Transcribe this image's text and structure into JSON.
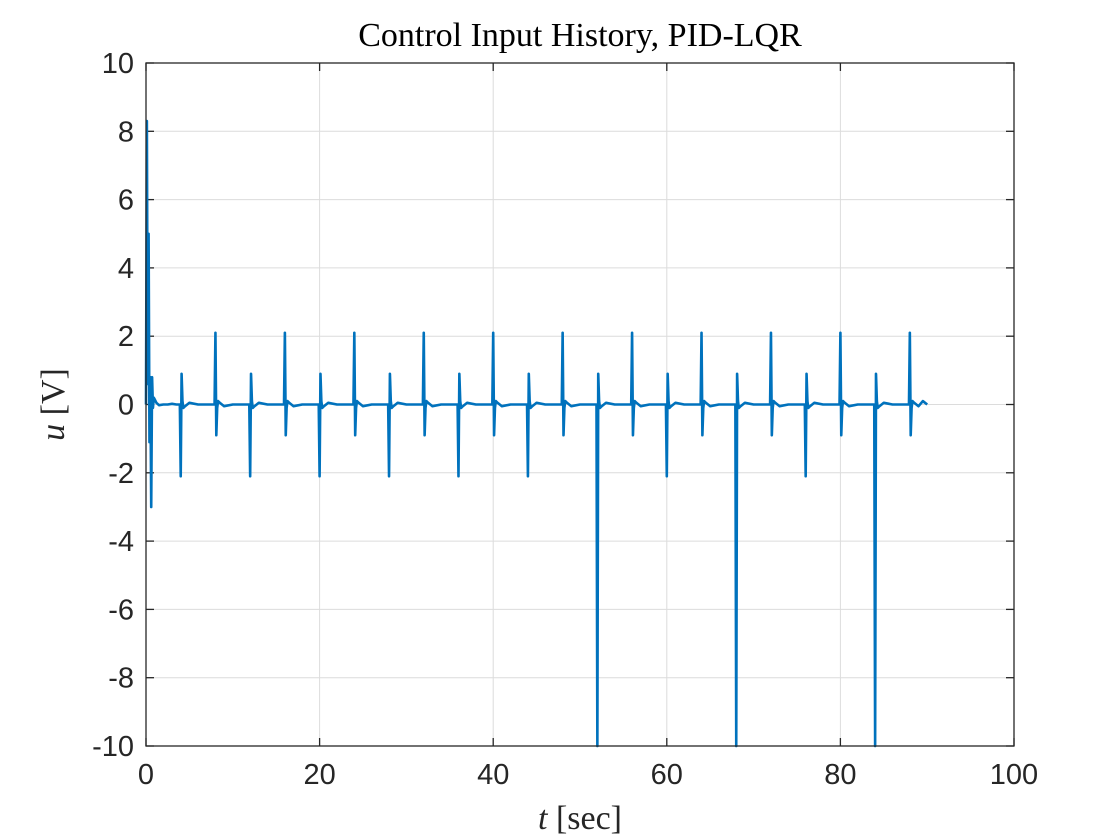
{
  "chart_data": {
    "type": "line",
    "title": "Control Input History, PID-LQR",
    "xlabel": {
      "var": "t",
      "unit": "[sec]"
    },
    "ylabel": {
      "var": "u",
      "unit": "[V]"
    },
    "xlim": [
      0,
      100
    ],
    "ylim": [
      -10,
      10
    ],
    "xticks": [
      0,
      20,
      40,
      60,
      80,
      100
    ],
    "xtick_labels": [
      "0",
      "20",
      "40",
      "60",
      "80",
      "100"
    ],
    "yticks": [
      -10,
      -8,
      -6,
      -4,
      -2,
      0,
      2,
      4,
      6,
      8,
      10
    ],
    "ytick_labels": [
      "-10",
      "-8",
      "-6",
      "-4",
      "-2",
      "0",
      "2",
      "4",
      "6",
      "8",
      "10"
    ],
    "grid": true,
    "line_color": "#0072BD",
    "grid_color": "#dcdcdc",
    "axis_color": "#262626",
    "series": [
      {
        "x": [
          0,
          0.1,
          0.2,
          0.3,
          0.4,
          0.5,
          0.6,
          0.7,
          0.8,
          0.9,
          1.0,
          1.2,
          1.5,
          2.0,
          2.5,
          3.0,
          3.5,
          3.9,
          4.0,
          4.1,
          4.2,
          4.3,
          4.5,
          5.0,
          6.0,
          7.0,
          7.9,
          8.0,
          8.1,
          8.2,
          8.3,
          8.5,
          9.0,
          10.0,
          11.0,
          11.9,
          12.0,
          12.1,
          12.2,
          12.3,
          12.5,
          13.0,
          14.0,
          15.0,
          15.9,
          16.0,
          16.1,
          16.2,
          16.3,
          16.5,
          17.0,
          18.0,
          19.0,
          19.9,
          20.0,
          20.1,
          20.2,
          20.3,
          20.5,
          21.0,
          22.0,
          23.0,
          23.9,
          24.0,
          24.1,
          24.2,
          24.3,
          24.5,
          25.0,
          26.0,
          27.0,
          27.9,
          28.0,
          28.1,
          28.2,
          28.3,
          28.5,
          29.0,
          30.0,
          31.0,
          31.9,
          32.0,
          32.1,
          32.2,
          32.3,
          32.5,
          33.0,
          34.0,
          35.0,
          35.9,
          36.0,
          36.1,
          36.2,
          36.3,
          36.5,
          37.0,
          38.0,
          39.0,
          39.9,
          40.0,
          40.1,
          40.2,
          40.3,
          40.5,
          41.0,
          42.0,
          43.0,
          43.9,
          44.0,
          44.1,
          44.2,
          44.3,
          44.5,
          45.0,
          46.0,
          47.0,
          47.9,
          48.0,
          48.1,
          48.2,
          48.3,
          48.5,
          49.0,
          50.0,
          51.0,
          51.9,
          52.0,
          52.1,
          52.2,
          52.3,
          52.5,
          53.0,
          54.0,
          55.0,
          55.9,
          56.0,
          56.1,
          56.2,
          56.3,
          56.5,
          57.0,
          58.0,
          59.0,
          59.9,
          60.0,
          60.1,
          60.2,
          60.3,
          60.5,
          61.0,
          62.0,
          63.0,
          63.9,
          64.0,
          64.1,
          64.2,
          64.3,
          64.5,
          65.0,
          66.0,
          67.0,
          67.9,
          68.0,
          68.1,
          68.2,
          68.3,
          68.5,
          69.0,
          70.0,
          71.0,
          71.9,
          72.0,
          72.1,
          72.2,
          72.3,
          72.5,
          73.0,
          74.0,
          75.0,
          75.9,
          76.0,
          76.1,
          76.2,
          76.3,
          76.5,
          77.0,
          78.0,
          79.0,
          79.9,
          80.0,
          80.1,
          80.2,
          80.3,
          80.5,
          81.0,
          82.0,
          83.0,
          83.9,
          84.0,
          84.1,
          84.2,
          84.3,
          84.5,
          85.0,
          86.0,
          87.0,
          87.9,
          88.0,
          88.1,
          88.2,
          88.3,
          88.5,
          89.0,
          89.5,
          90.0
        ],
        "y": [
          0,
          8.3,
          0.6,
          5.0,
          -1.1,
          0.8,
          -3.0,
          0.8,
          -0.1,
          0.2,
          0.15,
          0.05,
          -0.02,
          0,
          0,
          0.02,
          0,
          0,
          -2.1,
          0.9,
          0.1,
          -0.1,
          -0.05,
          0.05,
          0,
          0,
          0,
          2.1,
          -0.9,
          -0.1,
          0.1,
          0.05,
          -0.05,
          0,
          0,
          0,
          -2.1,
          0.9,
          0.1,
          -0.1,
          -0.05,
          0.05,
          0,
          0,
          0,
          2.1,
          -0.9,
          -0.1,
          0.1,
          0.05,
          -0.05,
          0,
          0,
          0,
          -2.1,
          0.9,
          0.1,
          -0.1,
          -0.05,
          0.05,
          0,
          0,
          0,
          2.1,
          -0.9,
          -0.1,
          0.1,
          0.05,
          -0.05,
          0,
          0,
          0,
          -2.1,
          0.9,
          0.1,
          -0.1,
          -0.05,
          0.05,
          0,
          0,
          0,
          2.1,
          -0.9,
          -0.1,
          0.1,
          0.05,
          -0.05,
          0,
          0,
          0,
          -2.1,
          0.9,
          0.1,
          -0.1,
          -0.05,
          0.05,
          0,
          0,
          0,
          2.1,
          -0.9,
          -0.1,
          0.1,
          0.05,
          -0.05,
          0,
          0,
          0,
          -2.1,
          0.9,
          0.1,
          -0.1,
          -0.05,
          0.05,
          0,
          0,
          0,
          2.1,
          -0.9,
          -0.1,
          0.1,
          0.05,
          -0.05,
          0,
          0,
          0,
          -10,
          0.9,
          0.1,
          -0.1,
          -0.05,
          0.05,
          0,
          0,
          0,
          2.1,
          -0.9,
          -0.1,
          0.1,
          0.05,
          -0.05,
          0,
          0,
          0,
          -2.1,
          0.9,
          0.1,
          -0.1,
          -0.05,
          0.05,
          0,
          0,
          0,
          2.1,
          -0.9,
          -0.1,
          0.1,
          0.05,
          -0.05,
          0,
          0,
          0,
          -10,
          0.9,
          0.1,
          -0.1,
          -0.05,
          0.05,
          0,
          0,
          0,
          2.1,
          -0.9,
          -0.1,
          0.1,
          0.05,
          -0.05,
          0,
          0,
          0,
          -2.1,
          0.9,
          0.1,
          -0.1,
          -0.05,
          0.05,
          0,
          0,
          0,
          2.1,
          -0.9,
          -0.1,
          0.1,
          0.05,
          -0.05,
          0,
          0,
          0,
          -10,
          0.9,
          0.1,
          -0.1,
          -0.05,
          0.05,
          0,
          0,
          0,
          2.1,
          -0.9,
          -0.1,
          0.1,
          0.05,
          -0.05,
          0.1,
          0
        ]
      }
    ]
  }
}
